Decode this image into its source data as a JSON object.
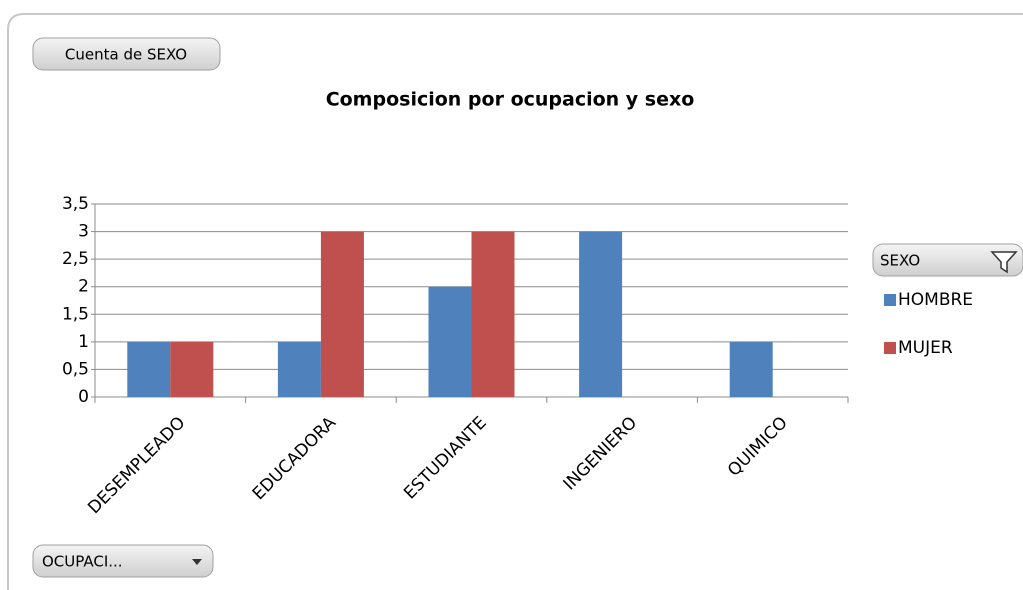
{
  "chart_data": {
    "type": "bar",
    "title": "Composicion por ocupacion y sexo",
    "value_field_button": "Cuenta de SEXO",
    "axis_field_button": "OCUPACI...",
    "legend_title": "SEXO",
    "categories": [
      "DESEMPLEADO",
      "EDUCADORA",
      "ESTUDIANTE",
      "INGENIERO",
      "QUIMICO"
    ],
    "series": [
      {
        "name": "HOMBRE",
        "color": "#4f81bd",
        "values": [
          1,
          1,
          2,
          3,
          1
        ]
      },
      {
        "name": "MUJER",
        "color": "#c0504d",
        "values": [
          1,
          3,
          3,
          null,
          null
        ]
      }
    ],
    "ylim": [
      0,
      3.5
    ],
    "yticks": [
      0,
      {
        "value": 0.5,
        "label": "0,5"
      },
      1,
      {
        "value": 1.5,
        "label": "1,5"
      },
      2,
      {
        "value": 2.5,
        "label": "2,5"
      },
      3,
      {
        "value": 3.5,
        "label": "3,5"
      }
    ],
    "grid": true,
    "legend": "right"
  }
}
